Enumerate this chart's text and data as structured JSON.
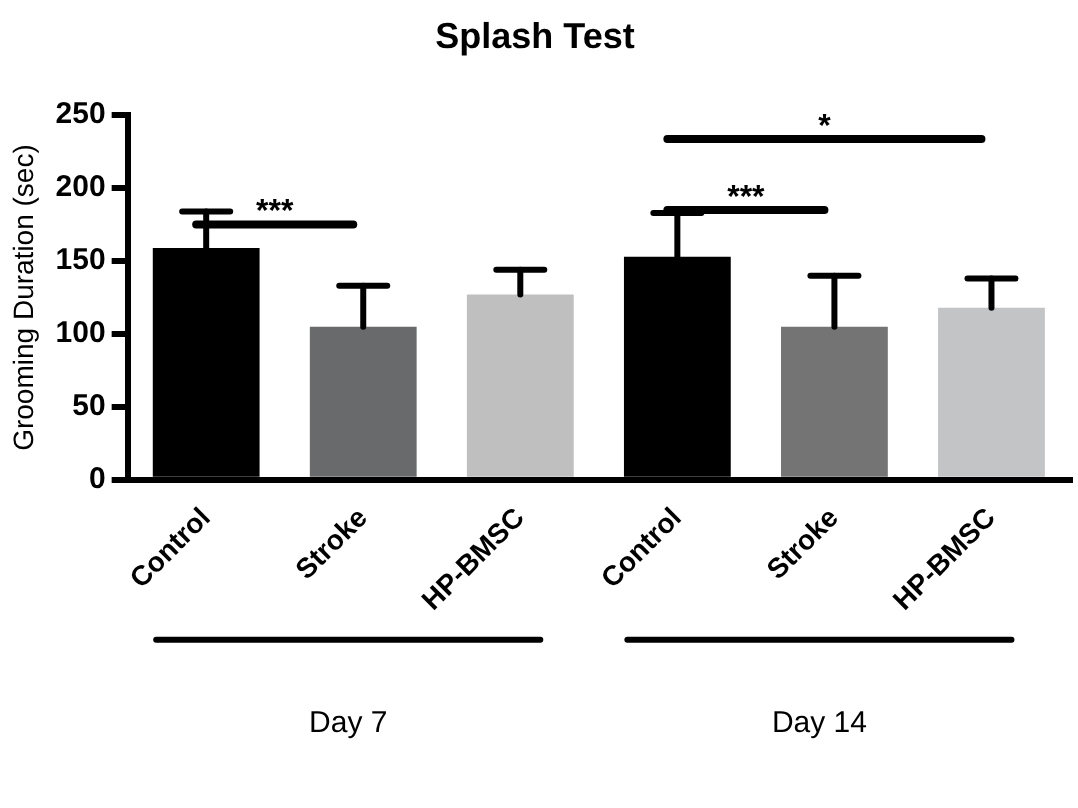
{
  "chart_data": {
    "type": "bar",
    "title": "Splash Test",
    "ylabel": "Grooming Duration (sec)",
    "categories": [
      "Control",
      "Stroke",
      "HP-BMSC",
      "Control",
      "Stroke",
      "HP-BMSC"
    ],
    "values": [
      159,
      105,
      127,
      153,
      105,
      118
    ],
    "colors": [
      "#000000",
      "#696a6c",
      "#bfbfbf",
      "#000000",
      "#747474",
      "#c3c4c6"
    ],
    "errors": [
      [
        159,
        184
      ],
      [
        105,
        133
      ],
      [
        127,
        144
      ],
      [
        153,
        183
      ],
      [
        105,
        140
      ],
      [
        118,
        138
      ]
    ],
    "ylim": [
      0,
      250
    ],
    "yticks": [
      0,
      50,
      100,
      150,
      200,
      250
    ],
    "grid": false,
    "legend": false,
    "annotations": [
      "***",
      "***",
      "*",
      "Day 7",
      "Day 14"
    ]
  }
}
